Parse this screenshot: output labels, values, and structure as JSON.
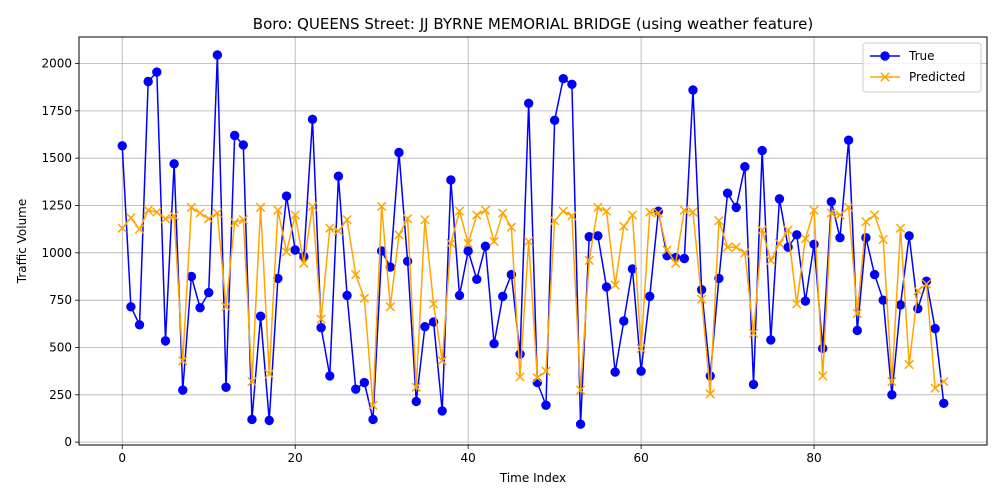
{
  "chart_data": {
    "type": "line",
    "title": "Boro: QUEENS Street: JJ BYRNE MEMORIAL BRIDGE (using weather feature)",
    "xlabel": "Time Index",
    "ylabel": "Traffic Volume",
    "xlim": [
      -5,
      100
    ],
    "ylim": [
      -15,
      2140
    ],
    "x_ticks": [
      0,
      20,
      40,
      60,
      80
    ],
    "y_ticks": [
      0,
      250,
      500,
      750,
      1000,
      1250,
      1500,
      1750,
      2000
    ],
    "grid": true,
    "legend": "top-right",
    "series": [
      {
        "name": "True",
        "color": "#0000ff",
        "marker": "circle",
        "values": [
          1565,
          715,
          620,
          1905,
          1955,
          535,
          1470,
          275,
          875,
          710,
          790,
          2045,
          290,
          1620,
          1570,
          120,
          665,
          115,
          865,
          1300,
          1015,
          980,
          1705,
          605,
          350,
          1405,
          775,
          280,
          315,
          120,
          1010,
          925,
          1530,
          955,
          215,
          610,
          635,
          165,
          1385,
          775,
          1010,
          860,
          1035,
          520,
          770,
          885,
          465,
          1790,
          315,
          195,
          1700,
          1920,
          1890,
          95,
          1085,
          1090,
          820,
          370,
          640,
          915,
          375,
          770,
          1220,
          985,
          975,
          970,
          1860,
          805,
          350,
          865,
          1315,
          1240,
          1455,
          305,
          1540,
          540,
          1285,
          1030,
          1095,
          745,
          1045,
          495,
          1270,
          1080,
          1595,
          590,
          1080,
          885,
          750,
          250,
          725,
          1090,
          705,
          850,
          600,
          205
        ]
      },
      {
        "name": "Predicted",
        "color": "#ffa500",
        "marker": "x",
        "values": [
          1130,
          1185,
          1125,
          1225,
          1215,
          1180,
          1195,
          430,
          1240,
          1210,
          1180,
          1210,
          715,
          1160,
          1175,
          320,
          1240,
          360,
          1225,
          1005,
          1200,
          945,
          1245,
          650,
          1130,
          1115,
          1175,
          885,
          760,
          195,
          1245,
          715,
          1095,
          1180,
          290,
          1175,
          730,
          430,
          1050,
          1220,
          1050,
          1200,
          1225,
          1060,
          1210,
          1135,
          345,
          1060,
          340,
          375,
          1170,
          1220,
          1195,
          275,
          960,
          1240,
          1220,
          830,
          1140,
          1200,
          495,
          1215,
          1210,
          1015,
          945,
          1225,
          1215,
          755,
          255,
          1170,
          1030,
          1030,
          1000,
          575,
          1120,
          960,
          1050,
          1120,
          730,
          1075,
          1225,
          350,
          1210,
          1200,
          1240,
          680,
          1165,
          1200,
          1070,
          320,
          1130,
          410,
          800,
          835,
          285,
          320
        ]
      }
    ]
  }
}
